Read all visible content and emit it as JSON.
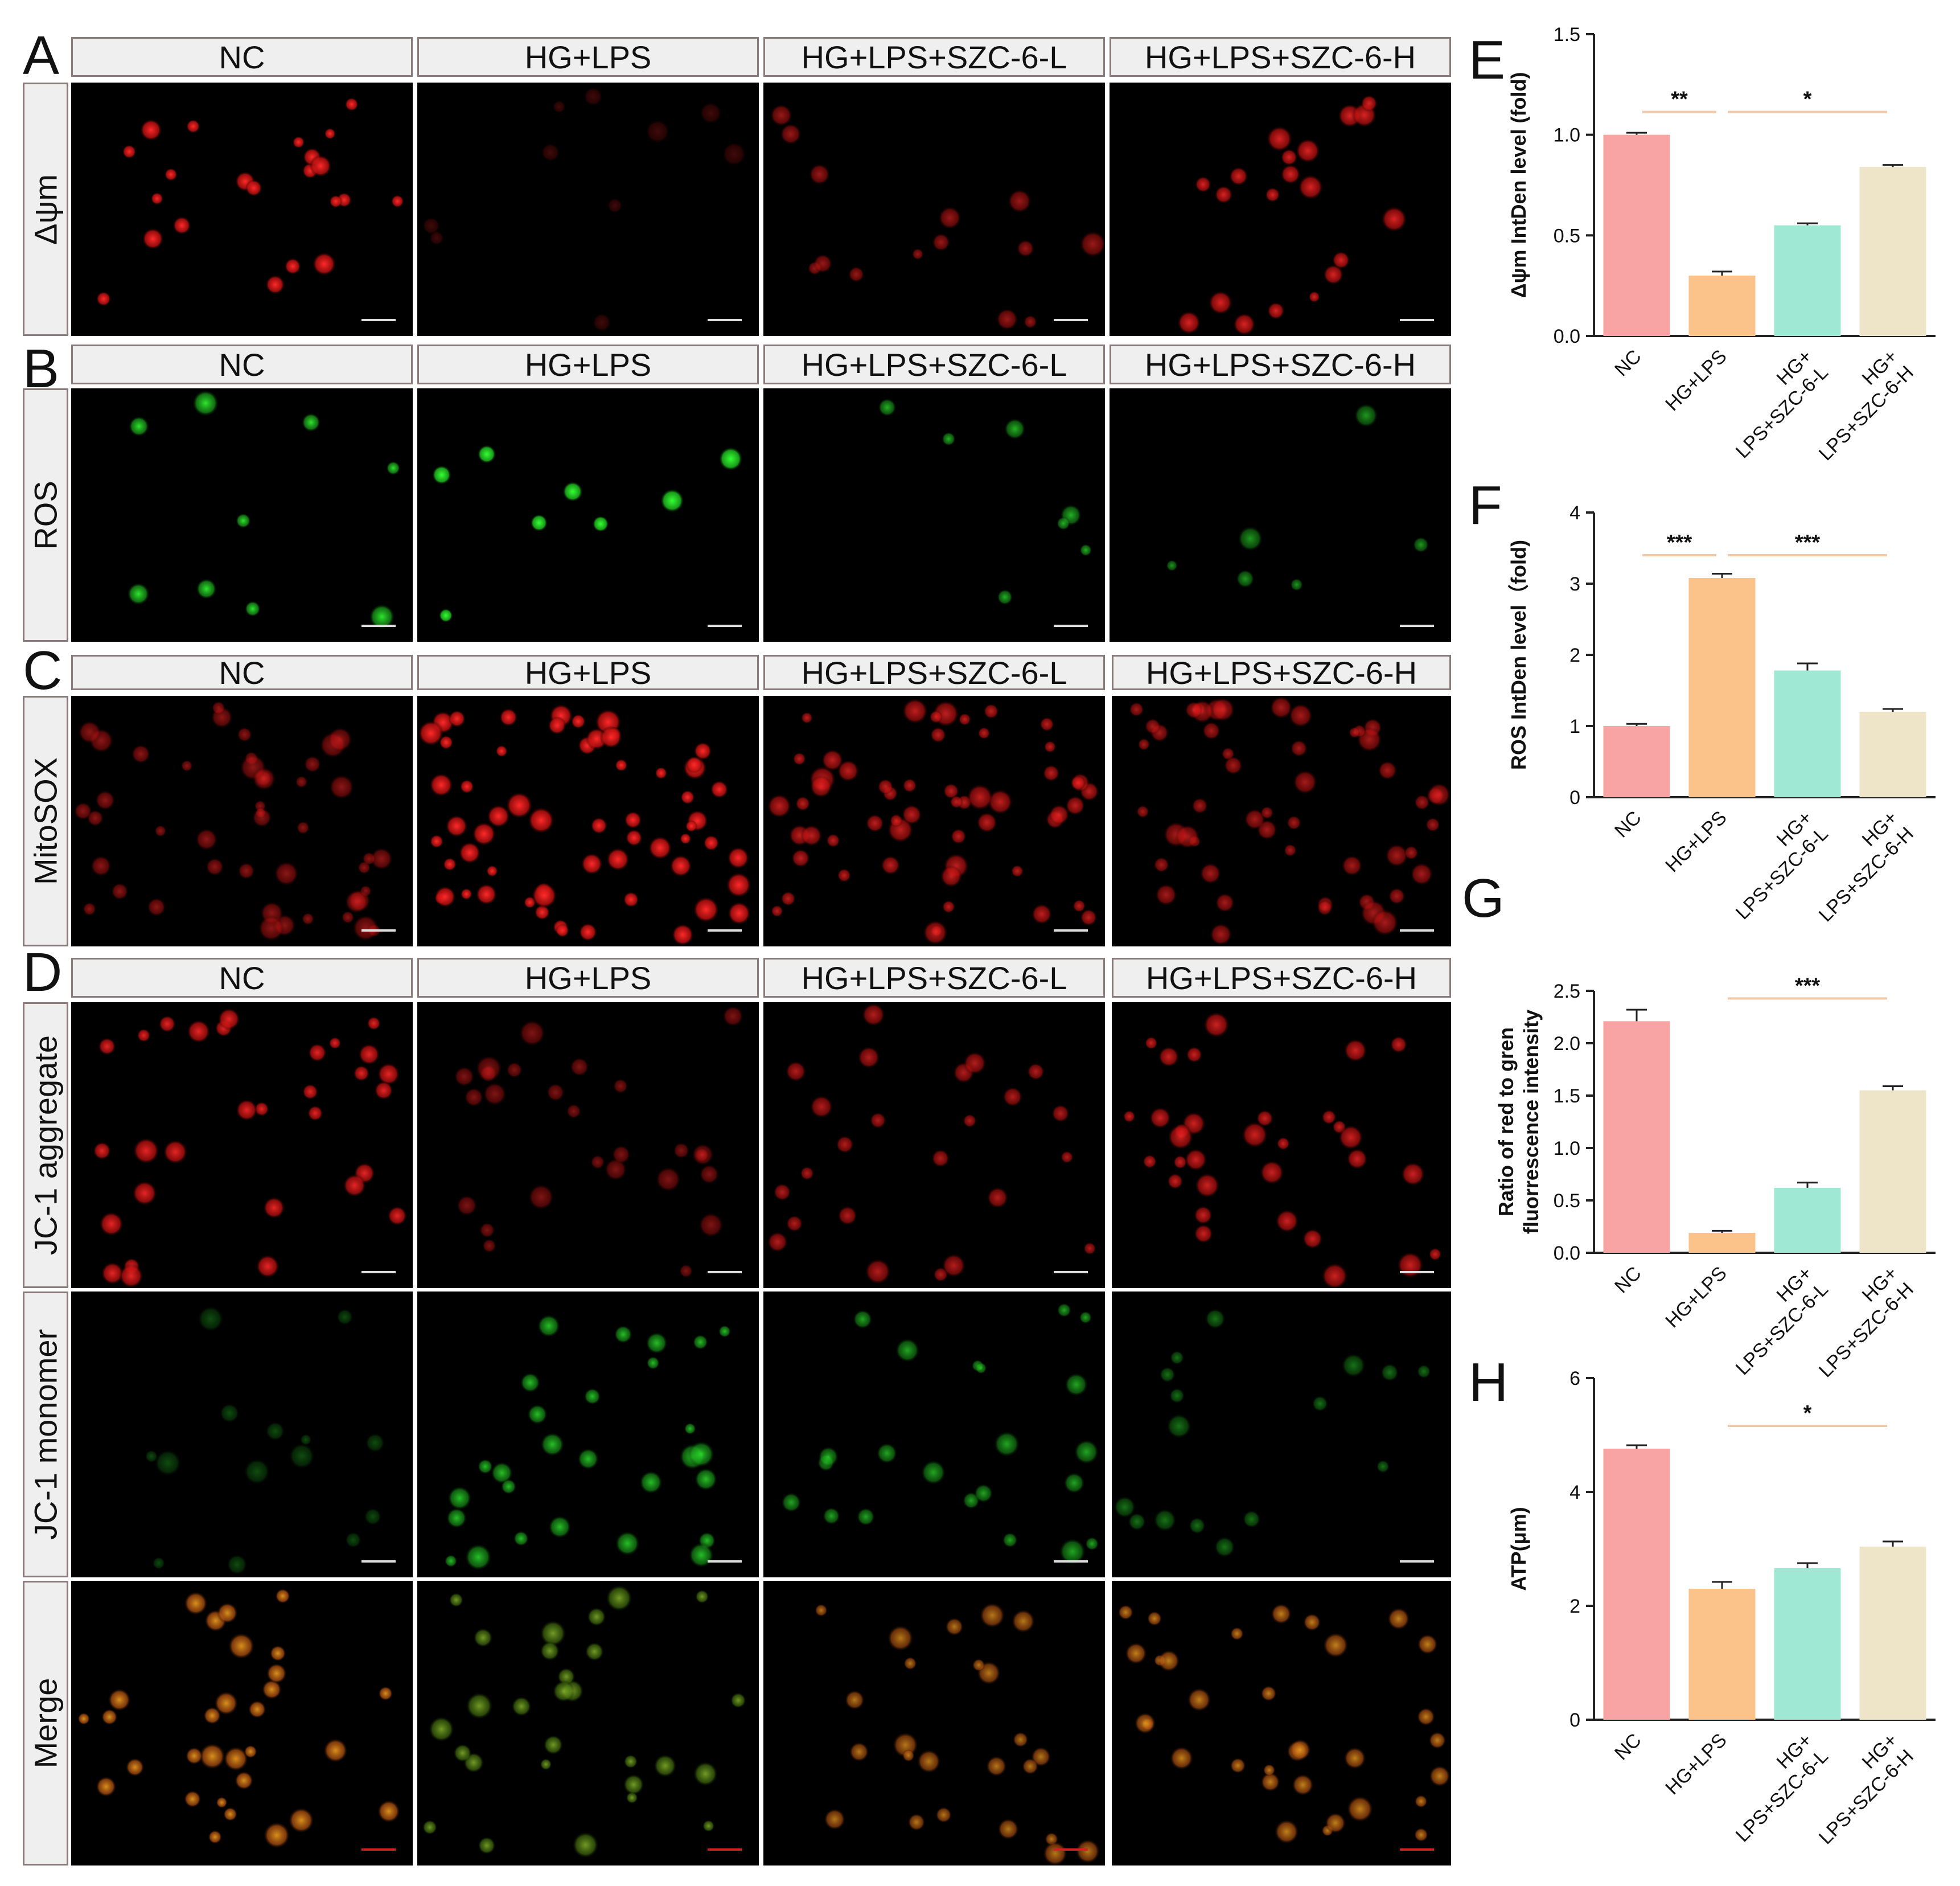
{
  "panels": {
    "A": {
      "letter": "A",
      "row_label": "Δψm",
      "headers": [
        "NC",
        "HG+LPS",
        "HG+LPS+SZC-6-L",
        "HG+LPS+SZC-6-H"
      ]
    },
    "B": {
      "letter": "B",
      "row_label": "ROS",
      "headers": [
        "NC",
        "HG+LPS",
        "HG+LPS+SZC-6-L",
        "HG+LPS+SZC-6-H"
      ]
    },
    "C": {
      "letter": "C",
      "row_label": "MitoSOX",
      "headers": [
        "NC",
        "HG+LPS",
        "HG+LPS+SZC-6-L",
        "HG+LPS+SZC-6-H"
      ]
    },
    "D": {
      "letter": "D",
      "row_labels": [
        "JC-1 aggregate",
        "JC-1 monomer",
        "Merge"
      ],
      "headers": [
        "NC",
        "HG+LPS",
        "HG+LPS+SZC-6-L",
        "HG+LPS+SZC-6-H"
      ]
    }
  },
  "colors": {
    "NC": "#f8a3a4",
    "HG+LPS": "#fbc28a",
    "HG+LPS+SZC-6-L": "#9fe8d4",
    "HG+LPS+SZC-6-H": "#eee4c8",
    "sig_line": "#f2c9a8",
    "red_cell": "#e01818",
    "green_cell": "#2ec42e",
    "merge_cell": "#d98a1e"
  },
  "chart_data": [
    {
      "letter": "E",
      "type": "bar",
      "categories": [
        "NC",
        "HG+LPS",
        "HG+\nLPS+SZC-6-L",
        "HG+\nLPS+SZC-6-H"
      ],
      "values": [
        1.0,
        0.3,
        0.55,
        0.84
      ],
      "errors": [
        0.01,
        0.02,
        0.01,
        0.01
      ],
      "ylabel": "Δψm IntDen level (fold)",
      "ylim": [
        0,
        1.5
      ],
      "ticks": [
        0.0,
        0.5,
        1.0,
        1.5
      ],
      "significance": [
        {
          "from": 0,
          "to": 1,
          "label": "**"
        },
        {
          "from": 1,
          "to": 3,
          "label": "*"
        }
      ]
    },
    {
      "letter": "F",
      "type": "bar",
      "categories": [
        "NC",
        "HG+LPS",
        "HG+\nLPS+SZC-6-L",
        "HG+\nLPS+SZC-6-H"
      ],
      "values": [
        1.0,
        3.08,
        1.78,
        1.2
      ],
      "errors": [
        0.03,
        0.06,
        0.1,
        0.04
      ],
      "ylabel": "ROS IntDen level（fold)",
      "ylim": [
        0,
        4
      ],
      "ticks": [
        0,
        1,
        2,
        3,
        4
      ],
      "significance": [
        {
          "from": 0,
          "to": 1,
          "label": "***"
        },
        {
          "from": 1,
          "to": 3,
          "label": "***"
        }
      ]
    },
    {
      "letter": "G",
      "type": "bar",
      "categories": [
        "NC",
        "HG+LPS",
        "HG+\nLPS+SZC-6-L",
        "HG+\nLPS+SZC-6-H"
      ],
      "values": [
        2.21,
        0.19,
        0.62,
        1.55
      ],
      "errors": [
        0.11,
        0.02,
        0.05,
        0.04
      ],
      "ylabel": "Ratio of red to gren\nfluorrescence intensity",
      "ylim": [
        0,
        2.5
      ],
      "ticks": [
        0.0,
        0.5,
        1.0,
        1.5,
        2.0,
        2.5
      ],
      "significance": [
        {
          "from": 1,
          "to": 3,
          "label": "***"
        }
      ]
    },
    {
      "letter": "H",
      "type": "bar",
      "categories": [
        "NC",
        "HG+LPS",
        "HG+\nLPS+SZC-6-L",
        "HG+\nLPS+SZC-6-H"
      ],
      "values": [
        4.76,
        2.3,
        2.66,
        3.04
      ],
      "errors": [
        0.06,
        0.12,
        0.09,
        0.09
      ],
      "ylabel": "ATP(μm)",
      "ylim": [
        0,
        6
      ],
      "ticks": [
        0,
        2,
        4,
        6
      ],
      "significance": [
        {
          "from": 1,
          "to": 3,
          "label": "*"
        }
      ]
    }
  ]
}
